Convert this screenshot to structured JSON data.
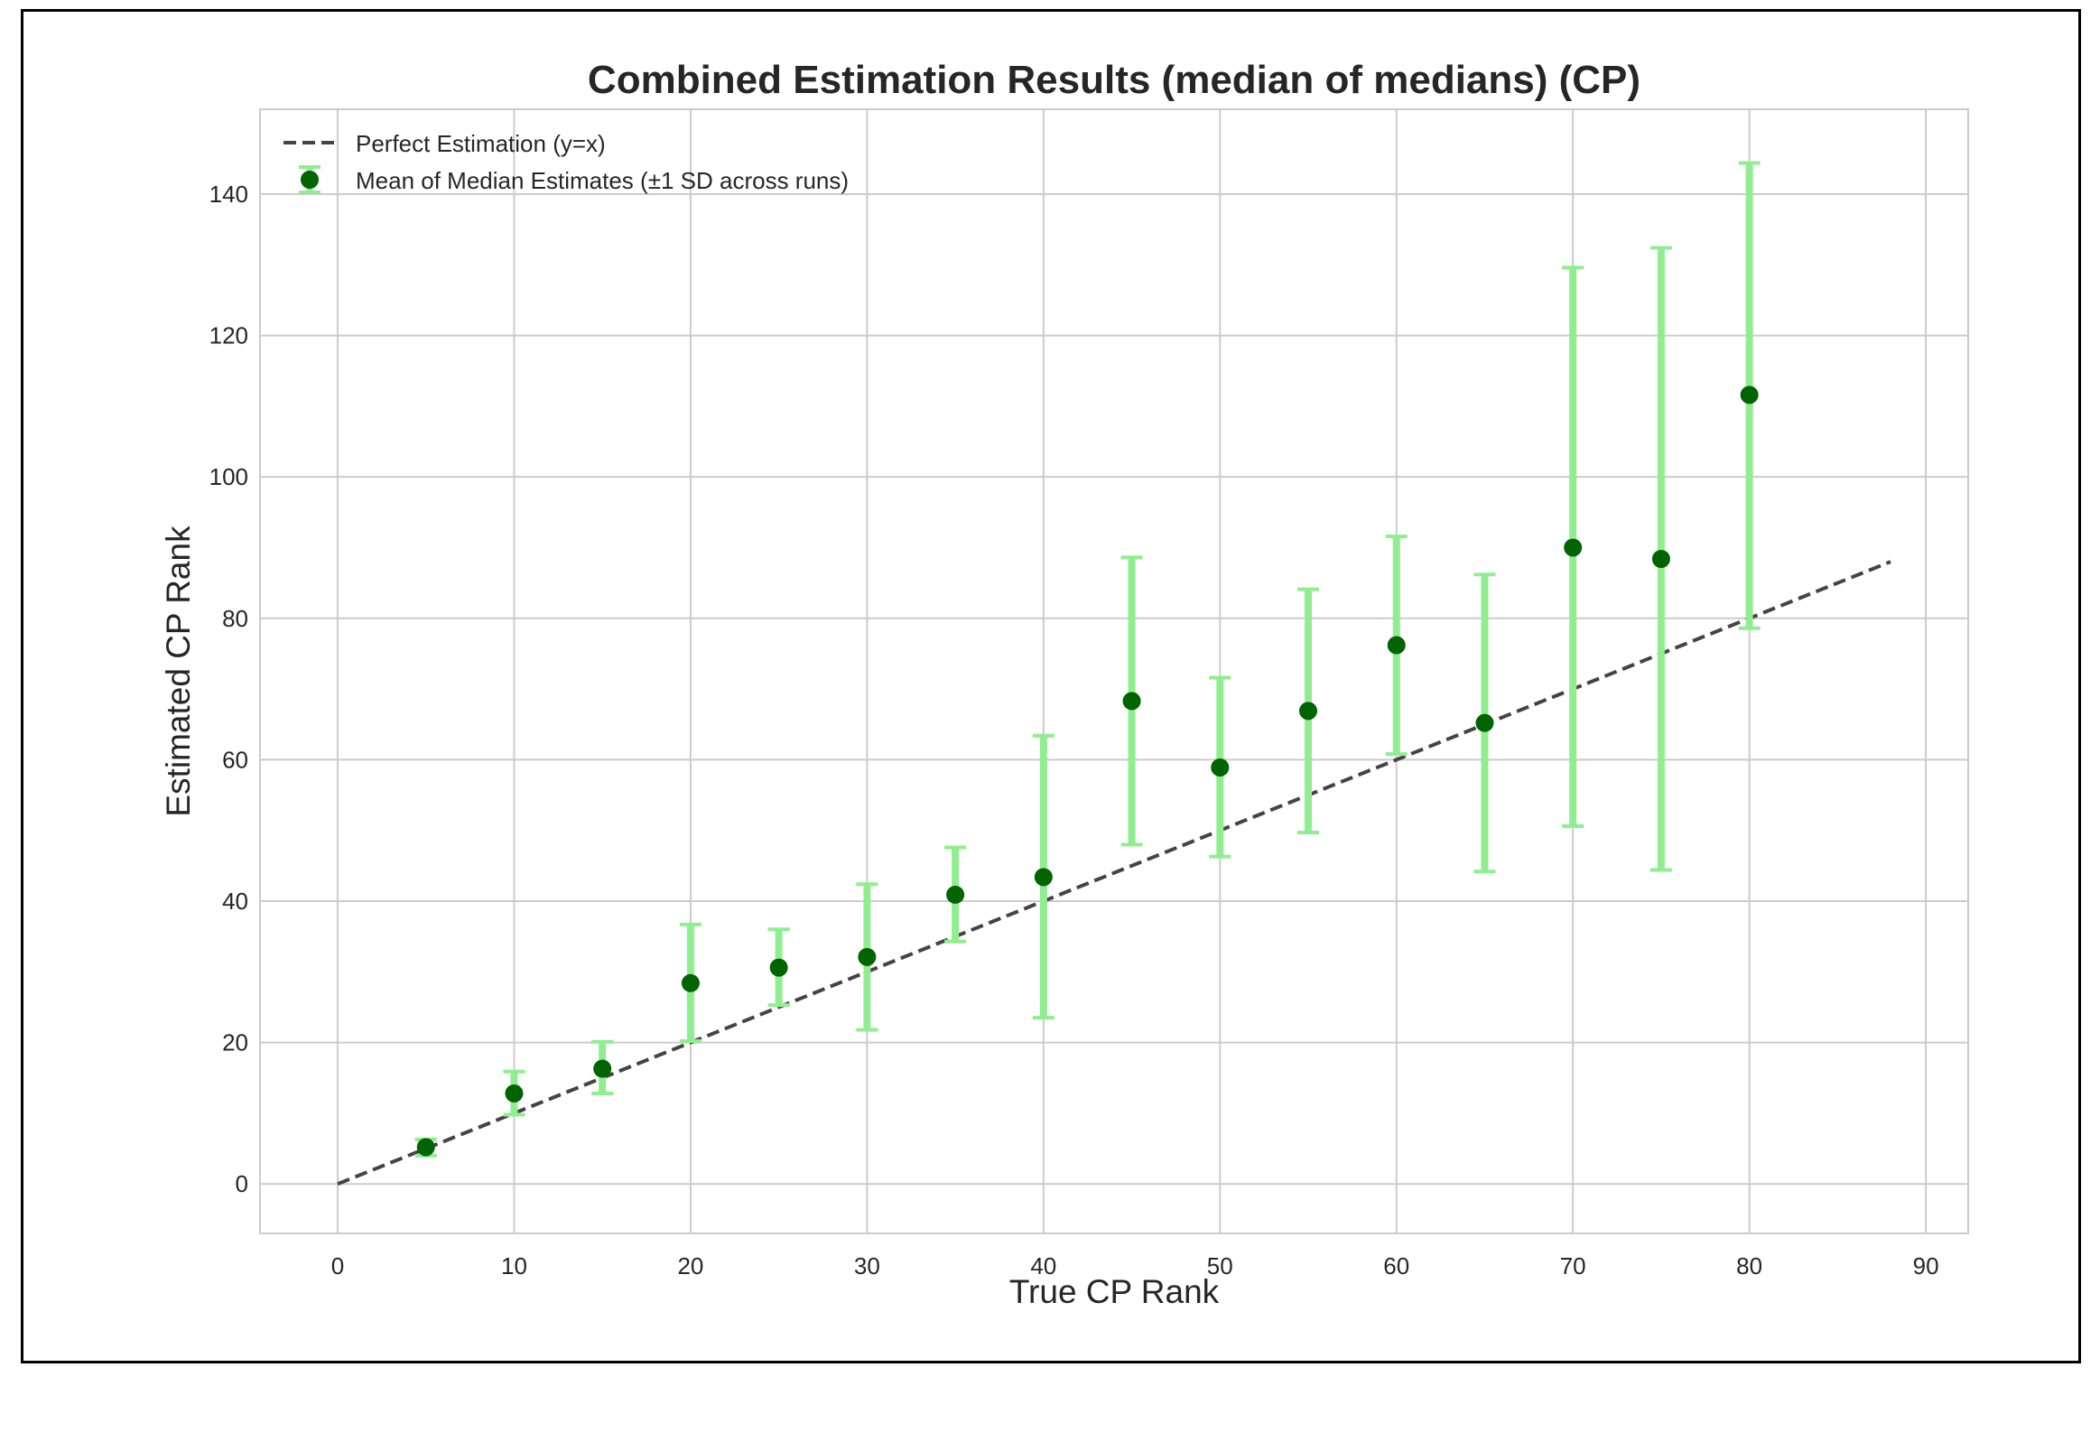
{
  "chart_data": {
    "type": "scatter",
    "title": "Combined Estimation Results (median of medians) (CP)",
    "xlabel": "True CP Rank",
    "ylabel": "Estimated CP Rank",
    "xlim": [
      -4.4,
      92.4
    ],
    "ylim": [
      -7,
      152
    ],
    "xticks": [
      0,
      10,
      20,
      30,
      40,
      50,
      60,
      70,
      80,
      90
    ],
    "yticks": [
      0,
      20,
      40,
      60,
      80,
      100,
      120,
      140
    ],
    "grid": true,
    "legend_position": "top-left",
    "colors": {
      "errorbar": "#90ee90",
      "marker": "#006400",
      "reference": "#444444",
      "grid": "#cccccc",
      "text": "#262626"
    },
    "reference_line": {
      "name": "Perfect Estimation (y=x)",
      "x": [
        0,
        88
      ],
      "y": [
        0,
        88
      ]
    },
    "series": [
      {
        "name": "Mean of Median Estimates (±1 SD across runs)",
        "x": [
          5,
          10,
          15,
          20,
          25,
          30,
          35,
          40,
          45,
          50,
          55,
          60,
          65,
          70,
          75,
          80
        ],
        "y": [
          5.2,
          12.8,
          16.3,
          28.4,
          30.6,
          32.1,
          40.9,
          43.4,
          68.3,
          58.9,
          66.9,
          76.2,
          65.2,
          90.0,
          88.4,
          111.6
        ],
        "lower": [
          4.0,
          9.8,
          12.8,
          20.2,
          25.3,
          21.8,
          34.3,
          23.5,
          48.0,
          46.3,
          49.7,
          60.8,
          44.2,
          50.6,
          44.4,
          78.6
        ],
        "upper": [
          6.3,
          15.9,
          20.1,
          36.7,
          36.0,
          42.4,
          47.6,
          63.4,
          88.6,
          71.6,
          84.1,
          91.6,
          86.2,
          129.6,
          132.4,
          144.4
        ]
      }
    ]
  }
}
